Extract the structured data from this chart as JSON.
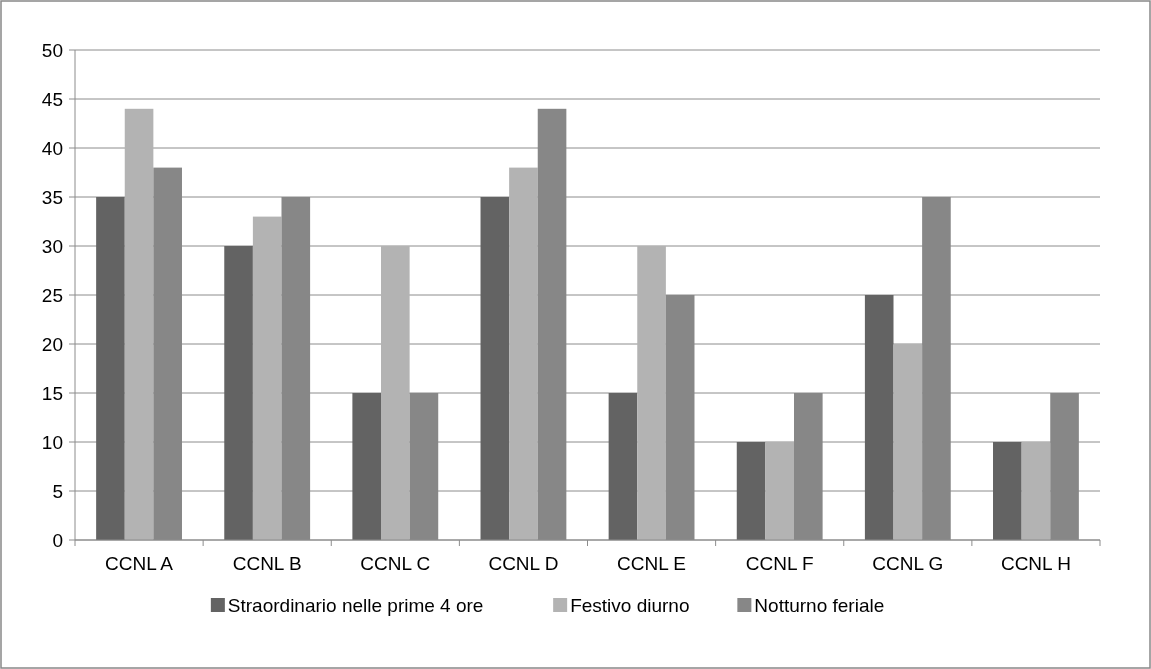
{
  "chart_data": {
    "type": "bar",
    "categories": [
      "CCNL A",
      "CCNL B",
      "CCNL C",
      "CCNL D",
      "CCNL E",
      "CCNL F",
      "CCNL G",
      "CCNL H"
    ],
    "series": [
      {
        "name": "Straordinario nelle prime 4 ore",
        "color": "#636363",
        "values": [
          35,
          30,
          15,
          35,
          15,
          10,
          25,
          10
        ]
      },
      {
        "name": "Festivo diurno",
        "color": "#b3b3b3",
        "values": [
          44,
          33,
          30,
          38,
          30,
          10,
          20,
          10
        ]
      },
      {
        "name": "Notturno feriale",
        "color": "#878787",
        "values": [
          38,
          35,
          15,
          44,
          25,
          15,
          35,
          15
        ]
      }
    ],
    "ylim": [
      0,
      50
    ],
    "yticks": [
      0,
      5,
      10,
      15,
      20,
      25,
      30,
      35,
      40,
      45,
      50
    ],
    "grid": "y",
    "legend": "bottom"
  }
}
